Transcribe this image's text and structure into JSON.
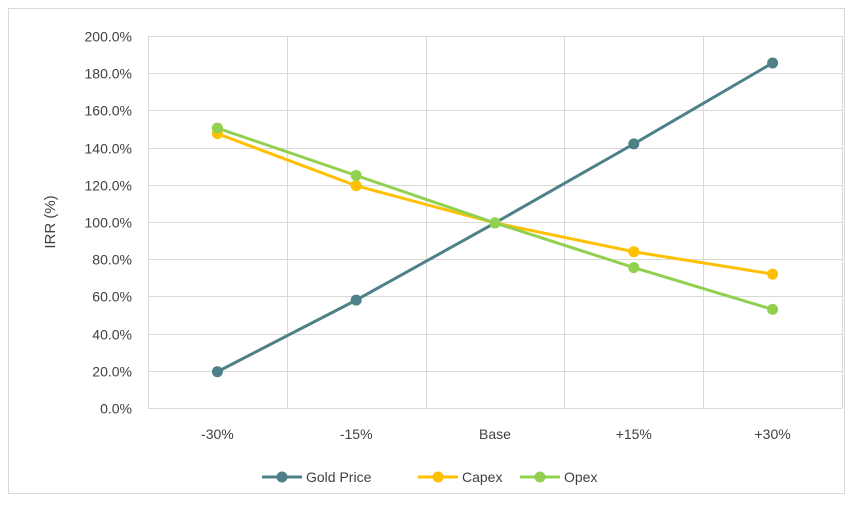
{
  "chart_data": {
    "type": "line",
    "title": "",
    "xlabel": "",
    "ylabel": "IRR (%)",
    "categories": [
      "-30%",
      "-15%",
      "Base",
      "+15%",
      "+30%"
    ],
    "ylim": [
      0,
      200
    ],
    "y_ticks": [
      "0.0%",
      "20.0%",
      "40.0%",
      "60.0%",
      "80.0%",
      "100.0%",
      "120.0%",
      "140.0%",
      "160.0%",
      "180.0%",
      "200.0%"
    ],
    "grid": true,
    "legend_position": "bottom",
    "series": [
      {
        "name": "Gold Price",
        "color": "#4e8187",
        "values": [
          19.5,
          58.0,
          99.5,
          142.0,
          185.5
        ]
      },
      {
        "name": "Capex",
        "color": "#ffc000",
        "values": [
          147.5,
          119.5,
          99.5,
          84.0,
          72.0
        ]
      },
      {
        "name": "Opex",
        "color": "#92d050",
        "values": [
          150.5,
          125.0,
          99.5,
          75.5,
          53.0
        ]
      }
    ]
  }
}
